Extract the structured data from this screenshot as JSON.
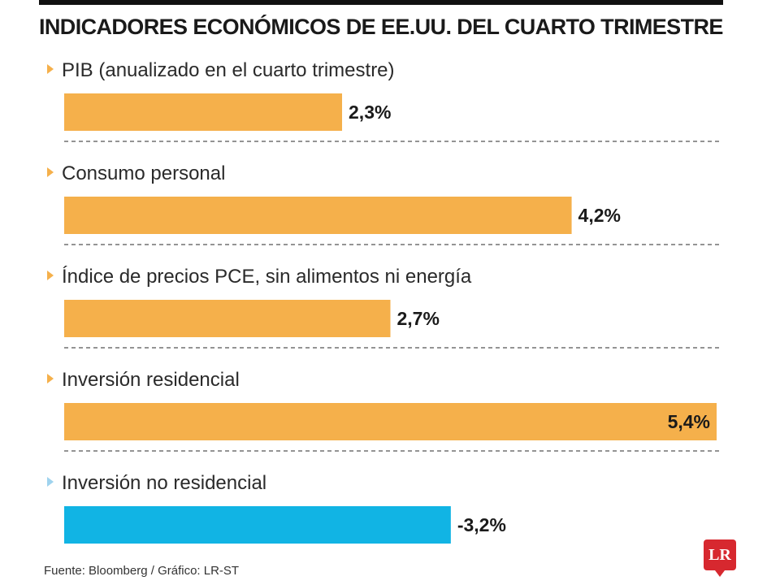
{
  "header": {
    "title": "INDICADORES ECONÓMICOS DE EE.UU. DEL CUARTO TRIMESTRE"
  },
  "chart_data": {
    "type": "bar",
    "orientation": "horizontal",
    "title": "INDICADORES ECONÓMICOS DE EE.UU. DEL CUARTO TRIMESTRE",
    "categories": [
      "PIB (anualizado en el cuarto trimestre)",
      "Consumo personal",
      "Índice de precios PCE, sin alimentos ni energía",
      "Inversión residencial",
      "Inversión no residencial"
    ],
    "values": [
      2.3,
      4.2,
      2.7,
      5.4,
      -3.2
    ],
    "value_labels": [
      "2,3%",
      "4,2%",
      "2,7%",
      "5,4%",
      "-3,2%"
    ],
    "bar_colors": [
      "#f5b04b",
      "#f5b04b",
      "#f5b04b",
      "#f5b04b",
      "#11b4e4"
    ],
    "marker_colors": [
      "#f5b04b",
      "#f5b04b",
      "#f5b04b",
      "#f5b04b",
      "#9fd3ee"
    ],
    "bars_by_magnitude": true,
    "xlim": [
      0,
      5.4
    ],
    "grid": false,
    "legend": "none"
  },
  "footer": {
    "source": "Fuente: Bloomberg / Gráfico: LR-ST",
    "logo": "LR"
  }
}
